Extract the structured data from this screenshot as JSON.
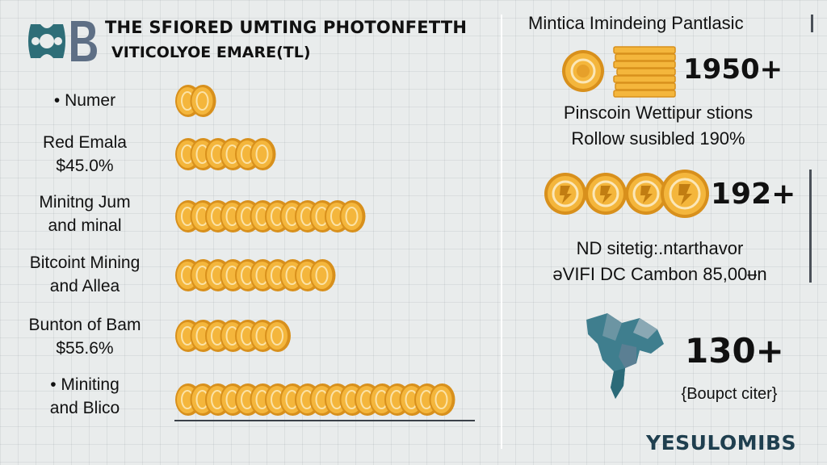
{
  "header": {
    "title_line1": "THE SFIORED UMTING PHOTONFETTH",
    "title_line2": "VITICOLYOE EMARE(TL)"
  },
  "colors": {
    "coin_gold": "#f4b63c",
    "coin_rim": "#d8901c",
    "logo_teal": "#2e6e78",
    "logo_slate": "#5e6f85",
    "map_teal": "#3f7e8e",
    "brand_navy": "#1f3f4f"
  },
  "chart_data": {
    "type": "bar",
    "orientation": "horizontal",
    "mark": "stacked-coin-icons",
    "categories": [
      [
        "• Numer"
      ],
      [
        "Red Emala",
        "$45.0%"
      ],
      [
        "Minitng Jum",
        "and minal"
      ],
      [
        "Bitcoint Mining",
        "and Allea"
      ],
      [
        "Bunton of Bam",
        "$55.6%"
      ],
      [
        "• Miniting",
        "and Blico"
      ]
    ],
    "values": [
      2,
      6,
      12,
      10,
      7,
      18
    ],
    "grid": true
  },
  "stats": {
    "header": "Mintica Imindeing Pantlasic",
    "items": [
      {
        "icon": "coin-stack-icon",
        "value": "1950+",
        "desc_line1": "Pinscoin Wettipur stions",
        "desc_line2": "Rollow susibled 190%"
      },
      {
        "icon": "coin-row-icon",
        "value": "192+",
        "desc_line1": "ND sitetig:.ntarthavor",
        "desc_line2": "ǝVIFI DC Cambon 85,00ᵾn"
      },
      {
        "icon": "map-icon",
        "value": "130+",
        "desc_line1": "{Boupct citer}"
      }
    ]
  },
  "footer": {
    "brand": "YESULOMIBS"
  }
}
